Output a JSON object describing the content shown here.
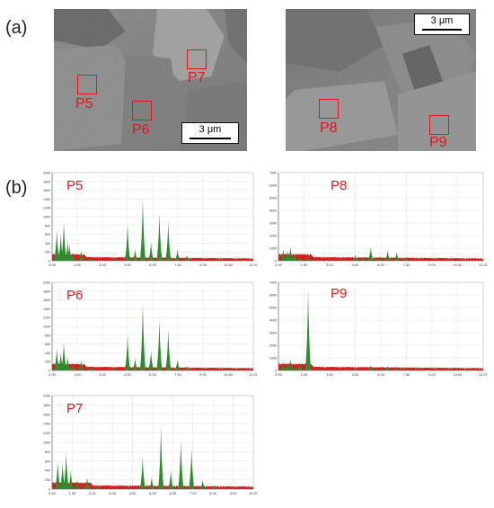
{
  "panels": {
    "a": "(a)",
    "b": "(b)"
  },
  "micrographs": [
    {
      "id": "left",
      "scalebar": "3 μm",
      "regions": [
        "P5",
        "P6",
        "P7"
      ]
    },
    {
      "id": "right",
      "scalebar": "3 μm",
      "regions": [
        "P8",
        "P9"
      ]
    }
  ],
  "colors": {
    "region": "#e3161c",
    "spectrum_peak": "#2e8b2e",
    "spectrum_base": "#d42020"
  },
  "spectra": [
    {
      "label": "P5",
      "ymax": 2000,
      "yticks": [
        0,
        200,
        400,
        600,
        800,
        1000,
        1200,
        1400,
        1600,
        1800,
        2000
      ],
      "xticks": [
        "0.00",
        "1.50",
        "3.00",
        "4.50",
        "6.00",
        "7.50",
        "9.00",
        "10.50",
        "12.00"
      ],
      "xmax": 12,
      "peaks": [
        [
          0.28,
          700
        ],
        [
          0.52,
          620
        ],
        [
          0.7,
          900
        ],
        [
          0.93,
          450
        ],
        [
          1.04,
          350
        ],
        [
          1.25,
          180
        ],
        [
          1.74,
          220
        ],
        [
          2.3,
          80
        ],
        [
          3.7,
          40
        ],
        [
          4.5,
          840
        ],
        [
          4.95,
          260
        ],
        [
          5.41,
          1440
        ],
        [
          5.9,
          420
        ],
        [
          6.4,
          1100
        ],
        [
          6.93,
          900
        ],
        [
          7.48,
          260
        ],
        [
          8.04,
          120
        ]
      ]
    },
    {
      "label": "P8",
      "ymax": 7000,
      "yticks": [
        0,
        1000,
        2000,
        3000,
        4000,
        5000,
        6000,
        7000
      ],
      "xticks": [
        "0.00",
        "1.50",
        "3.00",
        "4.50",
        "6.00",
        "7.50",
        "9.00",
        "10.50",
        "12.00"
      ],
      "xmax": 12,
      "peaks": [
        [
          0.28,
          900
        ],
        [
          0.52,
          800
        ],
        [
          0.7,
          1100
        ],
        [
          0.93,
          600
        ],
        [
          1.25,
          250
        ],
        [
          1.74,
          300
        ],
        [
          2.3,
          150
        ],
        [
          3.7,
          80
        ],
        [
          4.5,
          500
        ],
        [
          4.95,
          350
        ],
        [
          5.41,
          1100
        ],
        [
          5.9,
          350
        ],
        [
          6.4,
          850
        ],
        [
          6.93,
          700
        ],
        [
          7.48,
          300
        ]
      ]
    },
    {
      "label": "P6",
      "ymax": 2000,
      "yticks": [
        0,
        200,
        400,
        600,
        800,
        1000,
        1200,
        1400,
        1600,
        1800,
        2000
      ],
      "xticks": [
        "0.00",
        "1.50",
        "3.00",
        "4.50",
        "6.00",
        "7.50",
        "9.00",
        "10.50",
        "12.00"
      ],
      "xmax": 12,
      "peaks": [
        [
          0.28,
          500
        ],
        [
          0.52,
          420
        ],
        [
          0.7,
          650
        ],
        [
          0.93,
          300
        ],
        [
          1.25,
          150
        ],
        [
          1.74,
          220
        ],
        [
          2.3,
          90
        ],
        [
          3.7,
          40
        ],
        [
          4.5,
          820
        ],
        [
          4.95,
          280
        ],
        [
          5.41,
          1560
        ],
        [
          5.9,
          460
        ],
        [
          6.4,
          1180
        ],
        [
          6.93,
          950
        ],
        [
          7.48,
          250
        ],
        [
          8.04,
          100
        ]
      ]
    },
    {
      "label": "P9",
      "ymax": 7000,
      "yticks": [
        0,
        1000,
        2000,
        3000,
        4000,
        5000,
        6000,
        7000
      ],
      "xticks": [
        "0.00",
        "1.50",
        "3.00",
        "4.50",
        "6.00",
        "7.50",
        "9.00",
        "10.50",
        "12.00"
      ],
      "xmax": 12,
      "peaks": [
        [
          0.28,
          700
        ],
        [
          0.52,
          500
        ],
        [
          0.7,
          900
        ],
        [
          1.04,
          300
        ],
        [
          1.25,
          600
        ],
        [
          1.74,
          6500
        ],
        [
          2.3,
          150
        ],
        [
          3.7,
          80
        ],
        [
          4.5,
          200
        ],
        [
          5.41,
          400
        ],
        [
          6.4,
          350
        ],
        [
          6.93,
          250
        ]
      ]
    },
    {
      "label": "P7",
      "ymax": 2000,
      "yticks": [
        0,
        200,
        400,
        600,
        800,
        1000,
        1200,
        1400,
        1600,
        1800,
        2000
      ],
      "xticks": [
        "0.00",
        "1.00",
        "2.00",
        "3.00",
        "4.00",
        "5.00",
        "6.00",
        "7.00",
        "8.00",
        "9.00",
        "10.00"
      ],
      "xmax": 10,
      "peaks": [
        [
          0.28,
          600
        ],
        [
          0.52,
          560
        ],
        [
          0.7,
          800
        ],
        [
          0.93,
          400
        ],
        [
          1.25,
          200
        ],
        [
          1.74,
          250
        ],
        [
          2.3,
          80
        ],
        [
          3.7,
          40
        ],
        [
          4.5,
          700
        ],
        [
          4.95,
          250
        ],
        [
          5.41,
          1350
        ],
        [
          5.9,
          400
        ],
        [
          6.4,
          1050
        ],
        [
          6.93,
          880
        ],
        [
          7.48,
          200
        ],
        [
          8.04,
          90
        ]
      ]
    }
  ]
}
